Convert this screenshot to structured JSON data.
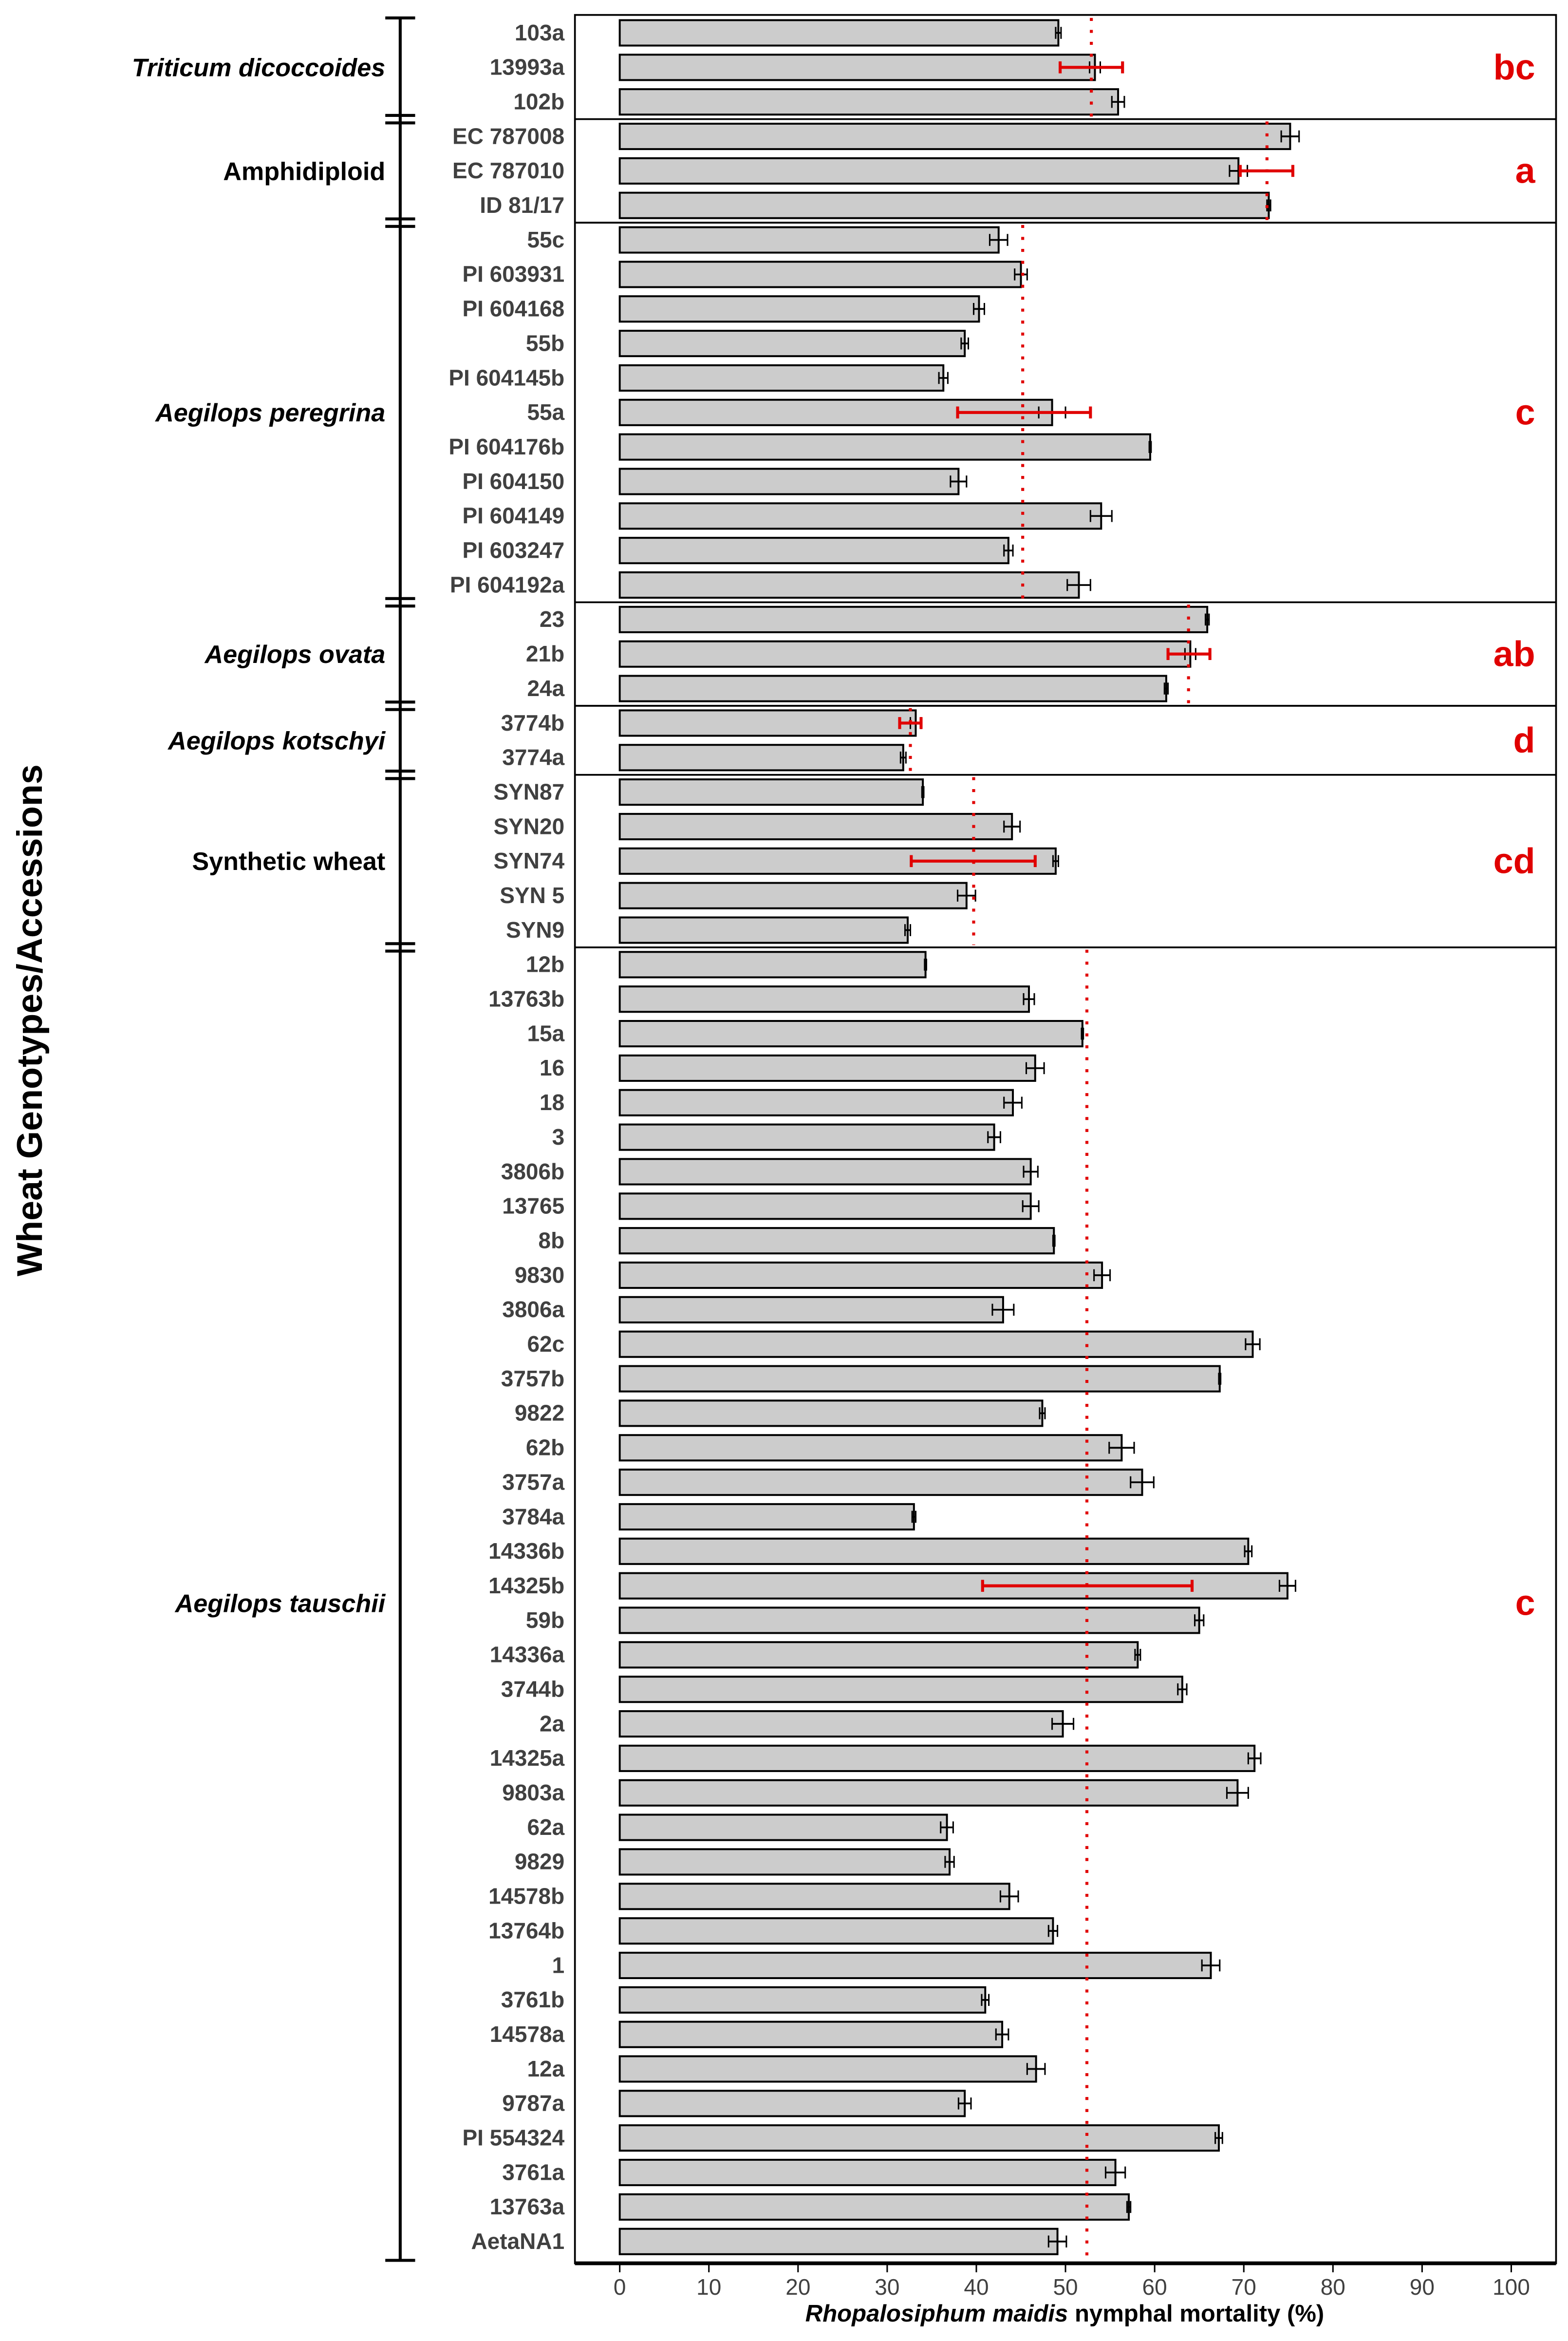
{
  "chart_data": {
    "type": "bar",
    "orientation": "horizontal",
    "xlabel_italic": "Rhopalosiphum maidis",
    "xlabel_rest": " nymphal mortality (%)",
    "ylabel": "Wheat Genotypes/Accessions",
    "xlim": [
      0,
      100
    ],
    "xticks": [
      "0",
      "10",
      "20",
      "30",
      "40",
      "50",
      "60",
      "70",
      "80",
      "90",
      "100"
    ],
    "colors": {
      "bar": "#cccccc",
      "mean_line": "#e00000",
      "letter": "#e00000"
    },
    "groups": [
      {
        "name": "Triticum dicoccoides",
        "italic": true,
        "letter": "bc",
        "mean": 52.9,
        "ci": [
          49.4,
          56.4
        ],
        "ci_row": 1,
        "rows": [
          {
            "label": "103a",
            "value": 49.2,
            "err": 0.3
          },
          {
            "label": "13993a",
            "value": 53.3,
            "err": 0.6
          },
          {
            "label": "102b",
            "value": 55.9,
            "err": 0.7
          }
        ]
      },
      {
        "name": "Amphidiploid",
        "italic": false,
        "letter": "a",
        "mean": 72.6,
        "ci": [
          69.6,
          75.5
        ],
        "ci_row": 1,
        "rows": [
          {
            "label": "EC 787008",
            "value": 75.2,
            "err": 1.0
          },
          {
            "label": "EC 787010",
            "value": 69.4,
            "err": 1.0
          },
          {
            "label": "ID 81/17",
            "value": 72.8,
            "err": 0.2
          }
        ]
      },
      {
        "name": "Aegilops peregrina",
        "italic": true,
        "letter": "c",
        "mean": 45.2,
        "ci": [
          37.9,
          52.8
        ],
        "ci_row": 5,
        "rows": [
          {
            "label": "55c",
            "value": 42.5,
            "err": 1.0
          },
          {
            "label": "PI 603931",
            "value": 45.0,
            "err": 0.7
          },
          {
            "label": "PI 604168",
            "value": 40.3,
            "err": 0.6
          },
          {
            "label": "55b",
            "value": 38.7,
            "err": 0.4
          },
          {
            "label": "PI 604145b",
            "value": 36.3,
            "err": 0.5
          },
          {
            "label": "55a",
            "value": 48.5,
            "err": 1.5
          },
          {
            "label": "PI 604176b",
            "value": 59.5,
            "err": 0.1
          },
          {
            "label": "PI 604150",
            "value": 38.0,
            "err": 0.9
          },
          {
            "label": "PI 604149",
            "value": 54.0,
            "err": 1.2
          },
          {
            "label": "PI 603247",
            "value": 43.6,
            "err": 0.5
          },
          {
            "label": "PI 604192a",
            "value": 51.5,
            "err": 1.3
          }
        ]
      },
      {
        "name": "Aegilops ovata",
        "italic": true,
        "letter": "ab",
        "mean": 63.8,
        "ci": [
          61.5,
          66.2
        ],
        "ci_row": 1,
        "rows": [
          {
            "label": "23",
            "value": 65.9,
            "err": 0.2
          },
          {
            "label": "21b",
            "value": 64.0,
            "err": 0.6
          },
          {
            "label": "24a",
            "value": 61.3,
            "err": 0.2
          }
        ]
      },
      {
        "name": "Aegilops kotschyi",
        "italic": true,
        "letter": "d",
        "mean": 32.6,
        "ci": [
          31.4,
          33.8
        ],
        "ci_row": 0,
        "rows": [
          {
            "label": "3774b",
            "value": 33.2,
            "err": 0.6
          },
          {
            "label": "3774a",
            "value": 31.8,
            "err": 0.3
          }
        ]
      },
      {
        "name": "Synthetic wheat",
        "italic": false,
        "letter": "cd",
        "mean": 39.7,
        "ci": [
          32.7,
          46.6
        ],
        "ci_row": 2,
        "rows": [
          {
            "label": "SYN87",
            "value": 34.0,
            "err": 0.1
          },
          {
            "label": "SYN20",
            "value": 44.0,
            "err": 0.9
          },
          {
            "label": "SYN74",
            "value": 48.9,
            "err": 0.3
          },
          {
            "label": "SYN 5",
            "value": 38.9,
            "err": 1.0
          },
          {
            "label": "SYN9",
            "value": 32.3,
            "err": 0.3
          }
        ]
      },
      {
        "name": "Aegilops tauschii",
        "italic": true,
        "letter": "c",
        "mean": 52.4,
        "ci": [
          40.7,
          64.2
        ],
        "ci_row": 18,
        "rows": [
          {
            "label": "12b",
            "value": 34.3,
            "err": 0.1
          },
          {
            "label": "13763b",
            "value": 45.9,
            "err": 0.6
          },
          {
            "label": "15a",
            "value": 51.9,
            "err": 0.1
          },
          {
            "label": "16",
            "value": 46.6,
            "err": 1.0
          },
          {
            "label": "18",
            "value": 44.1,
            "err": 1.0
          },
          {
            "label": "3",
            "value": 42.0,
            "err": 0.7
          },
          {
            "label": "3806b",
            "value": 46.1,
            "err": 0.8
          },
          {
            "label": "13765",
            "value": 46.1,
            "err": 0.9
          },
          {
            "label": "8b",
            "value": 48.7,
            "err": 0.1
          },
          {
            "label": "9830",
            "value": 54.1,
            "err": 0.9
          },
          {
            "label": "3806a",
            "value": 43.0,
            "err": 1.2
          },
          {
            "label": "62c",
            "value": 71.0,
            "err": 0.8
          },
          {
            "label": "3757b",
            "value": 67.3,
            "err": 0.1
          },
          {
            "label": "9822",
            "value": 47.4,
            "err": 0.3
          },
          {
            "label": "62b",
            "value": 56.3,
            "err": 1.4
          },
          {
            "label": "3757a",
            "value": 58.6,
            "err": 1.3
          },
          {
            "label": "3784a",
            "value": 33.0,
            "err": 0.2
          },
          {
            "label": "14336b",
            "value": 70.5,
            "err": 0.4
          },
          {
            "label": "14325b",
            "value": 74.9,
            "err": 0.9
          },
          {
            "label": "59b",
            "value": 65.0,
            "err": 0.5
          },
          {
            "label": "14336a",
            "value": 58.1,
            "err": 0.3
          },
          {
            "label": "3744b",
            "value": 63.1,
            "err": 0.5
          },
          {
            "label": "2a",
            "value": 49.7,
            "err": 1.2
          },
          {
            "label": "14325a",
            "value": 71.2,
            "err": 0.7
          },
          {
            "label": "9803a",
            "value": 69.3,
            "err": 1.2
          },
          {
            "label": "62a",
            "value": 36.7,
            "err": 0.7
          },
          {
            "label": "9829",
            "value": 37.0,
            "err": 0.5
          },
          {
            "label": "14578b",
            "value": 43.7,
            "err": 1.0
          },
          {
            "label": "13764b",
            "value": 48.6,
            "err": 0.5
          },
          {
            "label": "1",
            "value": 66.3,
            "err": 1.0
          },
          {
            "label": "3761b",
            "value": 41.0,
            "err": 0.4
          },
          {
            "label": "14578a",
            "value": 42.9,
            "err": 0.7
          },
          {
            "label": "12a",
            "value": 46.7,
            "err": 1.0
          },
          {
            "label": "9787a",
            "value": 38.7,
            "err": 0.7
          },
          {
            "label": "PI 554324",
            "value": 67.2,
            "err": 0.4
          },
          {
            "label": "3761a",
            "value": 55.6,
            "err": 1.1
          },
          {
            "label": "13763a",
            "value": 57.1,
            "err": 0.2
          },
          {
            "label": "AetaNA1",
            "value": 49.1,
            "err": 1.0
          }
        ]
      }
    ]
  }
}
